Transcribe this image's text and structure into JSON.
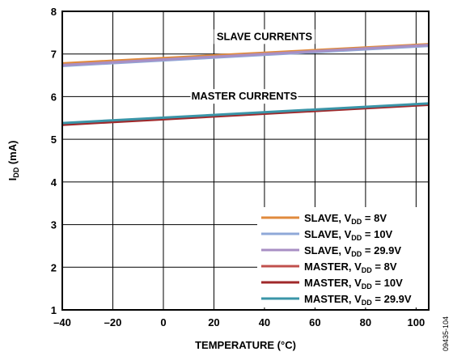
{
  "chart_data": {
    "type": "line",
    "xlabel": "TEMPERATURE (°C)",
    "ylabel": {
      "main": "I",
      "sub": "DD",
      "rest": " (mA)"
    },
    "xlim": [
      -40,
      105
    ],
    "ylim": [
      1,
      8
    ],
    "xticks": [
      -40,
      -20,
      0,
      20,
      40,
      60,
      80,
      100
    ],
    "xtick_labels": [
      "–40",
      "–20",
      "0",
      "20",
      "40",
      "60",
      "80",
      "100"
    ],
    "yticks": [
      1,
      2,
      3,
      4,
      5,
      6,
      7,
      8
    ],
    "grid": true,
    "legend_position": "bottom-right",
    "annotations": [
      "SLAVE CURRENTS",
      "MASTER CURRENTS"
    ],
    "figure_id": "09435-104",
    "series": [
      {
        "name": "SLAVE, V",
        "sub": "DD",
        "suffix": " = 8V",
        "color": "#e08a3c",
        "x": [
          -40,
          105
        ],
        "y": [
          6.78,
          7.23
        ]
      },
      {
        "name": "SLAVE, V",
        "sub": "DD",
        "suffix": " = 10V",
        "color": "#8fa8d8",
        "x": [
          -40,
          105
        ],
        "y": [
          6.72,
          7.19
        ]
      },
      {
        "name": "SLAVE, V",
        "sub": "DD",
        "suffix": " = 29.9V",
        "color": "#a88fc4",
        "x": [
          -40,
          105
        ],
        "y": [
          6.74,
          7.21
        ]
      },
      {
        "name": "MASTER, V",
        "sub": "DD",
        "suffix": " = 8V",
        "color": "#c0504d",
        "x": [
          -40,
          105
        ],
        "y": [
          5.35,
          5.82
        ]
      },
      {
        "name": "MASTER, V",
        "sub": "DD",
        "suffix": " = 10V",
        "color": "#a0282a",
        "x": [
          -40,
          105
        ],
        "y": [
          5.34,
          5.81
        ]
      },
      {
        "name": "MASTER, V",
        "sub": "DD",
        "suffix": " = 29.9V",
        "color": "#3a95a8",
        "x": [
          -40,
          105
        ],
        "y": [
          5.38,
          5.84
        ]
      }
    ]
  }
}
